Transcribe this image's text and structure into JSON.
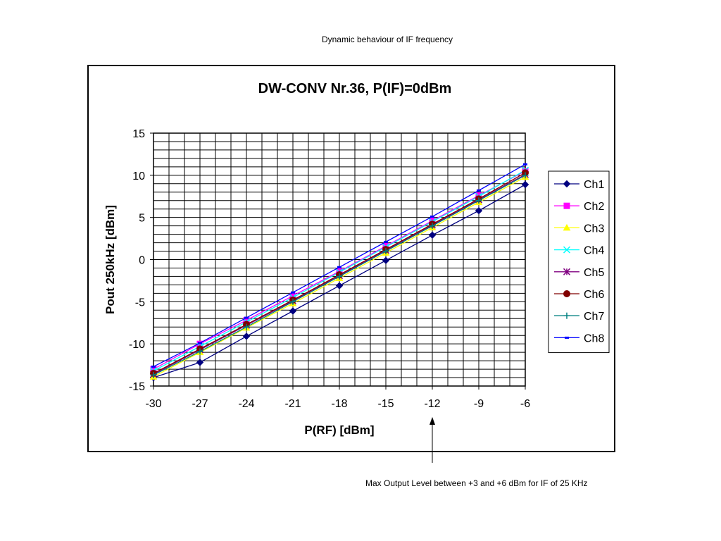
{
  "page_title": "Dynamic behaviour of IF frequency",
  "annotation": "Max Output Level between +3 and +6 dBm for IF of 25 KHz",
  "annotation_x": -12,
  "chart_data": {
    "type": "line",
    "title": "DW-CONV Nr.36, P(IF)=0dBm",
    "xlabel": "P(RF) [dBm]",
    "ylabel": "Pout 250kHz [dBm]",
    "xlim": [
      -30,
      -6
    ],
    "ylim": [
      -15,
      15
    ],
    "xticks": [
      -30,
      -27,
      -24,
      -21,
      -18,
      -15,
      -12,
      -9,
      -6
    ],
    "yticks": [
      15,
      10,
      5,
      0,
      -5,
      -10,
      -15
    ],
    "grid": true,
    "legend_position": "right",
    "x": [
      -30,
      -27,
      -24,
      -21,
      -18,
      -15,
      -12,
      -9,
      -6
    ],
    "series": [
      {
        "name": "Ch1",
        "color": "#000080",
        "marker": "diamond",
        "values": [
          -14.0,
          -12.2,
          -9.1,
          -6.1,
          -3.1,
          -0.1,
          2.9,
          5.8,
          8.9
        ]
      },
      {
        "name": "Ch2",
        "color": "#ff00ff",
        "marker": "square",
        "values": [
          -13.0,
          -10.0,
          -7.2,
          -4.3,
          -1.4,
          1.6,
          4.6,
          7.6,
          10.5
        ]
      },
      {
        "name": "Ch3",
        "color": "#ffff00",
        "marker": "triangle",
        "values": [
          -13.9,
          -11.0,
          -8.1,
          -5.2,
          -2.2,
          0.8,
          3.8,
          6.8,
          9.8
        ]
      },
      {
        "name": "Ch4",
        "color": "#00ffff",
        "marker": "x",
        "values": [
          -13.2,
          -10.3,
          -7.4,
          -4.5,
          -1.5,
          1.5,
          4.5,
          7.5,
          10.6
        ]
      },
      {
        "name": "Ch5",
        "color": "#800080",
        "marker": "star",
        "values": [
          -13.6,
          -10.7,
          -7.8,
          -4.9,
          -1.9,
          1.1,
          4.1,
          7.1,
          10.1
        ]
      },
      {
        "name": "Ch6",
        "color": "#800000",
        "marker": "circle",
        "values": [
          -13.5,
          -10.6,
          -7.7,
          -4.8,
          -1.8,
          1.2,
          4.2,
          7.2,
          10.3
        ]
      },
      {
        "name": "Ch7",
        "color": "#008080",
        "marker": "plus",
        "values": [
          -13.7,
          -10.9,
          -8.0,
          -5.0,
          -2.0,
          1.0,
          4.0,
          7.0,
          10.0
        ]
      },
      {
        "name": "Ch8",
        "color": "#0000ff",
        "marker": "dash",
        "values": [
          -12.7,
          -9.9,
          -6.9,
          -3.9,
          -0.9,
          2.1,
          5.1,
          8.2,
          11.3
        ]
      }
    ]
  }
}
